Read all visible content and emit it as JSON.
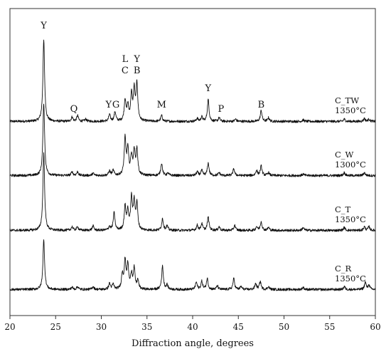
{
  "chart_data": {
    "type": "line",
    "title": "",
    "xlabel": "Diffraction angle, degrees",
    "ylabel": "",
    "xlim": [
      20,
      60
    ],
    "xticks": [
      20,
      25,
      30,
      35,
      40,
      45,
      50,
      55,
      60
    ],
    "grid": false,
    "legend": "none",
    "series": [
      {
        "id": "ctw",
        "label_line1": "C_TW",
        "label_line2": "1350°C",
        "baseline": 1.0,
        "peaks": [
          [
            23.7,
            11.2
          ],
          [
            26.8,
            0.6
          ],
          [
            27.4,
            0.8
          ],
          [
            28.3,
            0.3
          ],
          [
            30.9,
            0.9
          ],
          [
            31.5,
            1.3
          ],
          [
            32.6,
            2.9
          ],
          [
            32.9,
            2.0
          ],
          [
            33.3,
            3.5
          ],
          [
            33.6,
            4.1
          ],
          [
            33.9,
            5.0
          ],
          [
            36.6,
            0.8
          ],
          [
            40.5,
            0.4
          ],
          [
            41.0,
            0.6
          ],
          [
            41.7,
            3.0
          ],
          [
            42.9,
            0.5
          ],
          [
            44.7,
            0.3
          ],
          [
            47.5,
            1.5
          ],
          [
            48.3,
            0.5
          ],
          [
            52.1,
            0.2
          ],
          [
            56.6,
            0.3
          ],
          [
            58.8,
            0.4
          ],
          [
            59.3,
            0.3
          ]
        ]
      },
      {
        "id": "cw",
        "label_line1": "C_W",
        "label_line2": "1300°C",
        "baseline": 1.0,
        "peaks": [
          [
            23.7,
            10.0
          ],
          [
            26.8,
            0.5
          ],
          [
            27.4,
            0.5
          ],
          [
            29.1,
            0.3
          ],
          [
            30.9,
            0.6
          ],
          [
            31.3,
            0.7
          ],
          [
            32.6,
            5.0
          ],
          [
            32.9,
            3.5
          ],
          [
            33.3,
            2.5
          ],
          [
            33.6,
            3.2
          ],
          [
            33.9,
            3.5
          ],
          [
            36.6,
            1.7
          ],
          [
            37.3,
            0.3
          ],
          [
            40.5,
            0.5
          ],
          [
            41.0,
            0.7
          ],
          [
            41.7,
            1.7
          ],
          [
            42.9,
            0.4
          ],
          [
            44.5,
            0.9
          ],
          [
            47.0,
            0.7
          ],
          [
            47.5,
            1.3
          ],
          [
            48.3,
            0.4
          ],
          [
            52.1,
            0.2
          ],
          [
            56.6,
            0.4
          ],
          [
            58.8,
            0.4
          ]
        ]
      },
      {
        "id": "ct",
        "label_line1": "C_T",
        "label_line2": "1350°C",
        "baseline": 1.0,
        "peaks": [
          [
            23.7,
            10.6
          ],
          [
            26.8,
            0.5
          ],
          [
            27.4,
            0.5
          ],
          [
            29.1,
            0.6
          ],
          [
            30.9,
            0.5
          ],
          [
            31.4,
            2.4
          ],
          [
            32.6,
            3.2
          ],
          [
            32.9,
            2.5
          ],
          [
            33.3,
            4.3
          ],
          [
            33.6,
            3.8
          ],
          [
            33.9,
            3.5
          ],
          [
            36.7,
            1.6
          ],
          [
            37.2,
            0.6
          ],
          [
            40.5,
            0.7
          ],
          [
            41.0,
            0.9
          ],
          [
            41.7,
            1.8
          ],
          [
            42.9,
            0.5
          ],
          [
            44.6,
            0.7
          ],
          [
            47.0,
            0.5
          ],
          [
            47.5,
            1.2
          ],
          [
            48.3,
            0.4
          ],
          [
            52.1,
            0.4
          ],
          [
            56.6,
            0.4
          ],
          [
            58.8,
            0.5
          ],
          [
            59.3,
            0.5
          ]
        ]
      },
      {
        "id": "cr",
        "label_line1": "C_R",
        "label_line2": "1350°C",
        "baseline": 1.0,
        "peaks": [
          [
            23.7,
            6.8
          ],
          [
            26.8,
            0.3
          ],
          [
            27.4,
            0.4
          ],
          [
            29.1,
            0.4
          ],
          [
            30.9,
            0.8
          ],
          [
            31.3,
            0.7
          ],
          [
            32.3,
            2.0
          ],
          [
            32.6,
            3.8
          ],
          [
            32.9,
            3.2
          ],
          [
            33.3,
            2.0
          ],
          [
            33.6,
            2.8
          ],
          [
            34.0,
            1.2
          ],
          [
            36.7,
            3.2
          ],
          [
            37.2,
            0.6
          ],
          [
            40.4,
            1.0
          ],
          [
            41.0,
            1.1
          ],
          [
            41.6,
            1.5
          ],
          [
            42.7,
            0.5
          ],
          [
            44.5,
            1.5
          ],
          [
            45.3,
            0.4
          ],
          [
            46.9,
            0.8
          ],
          [
            47.4,
            1.1
          ],
          [
            48.3,
            0.4
          ],
          [
            52.1,
            0.3
          ],
          [
            56.6,
            0.4
          ],
          [
            58.9,
            1.0
          ],
          [
            59.3,
            0.6
          ]
        ]
      }
    ],
    "phase_annotations": [
      {
        "text": "Y",
        "x": 23.7
      },
      {
        "text": "Q",
        "x": 27.0
      },
      {
        "text": "Y",
        "x": 30.8
      },
      {
        "text": "G",
        "x": 31.6
      },
      {
        "text": "L",
        "x": 32.6
      },
      {
        "text": "C",
        "x": 32.6
      },
      {
        "text": "Y",
        "x": 33.9
      },
      {
        "text": "B",
        "x": 33.9
      },
      {
        "text": "M",
        "x": 36.6
      },
      {
        "text": "Y",
        "x": 41.7
      },
      {
        "text": "P",
        "x": 43.1
      },
      {
        "text": "B",
        "x": 47.5
      }
    ]
  }
}
